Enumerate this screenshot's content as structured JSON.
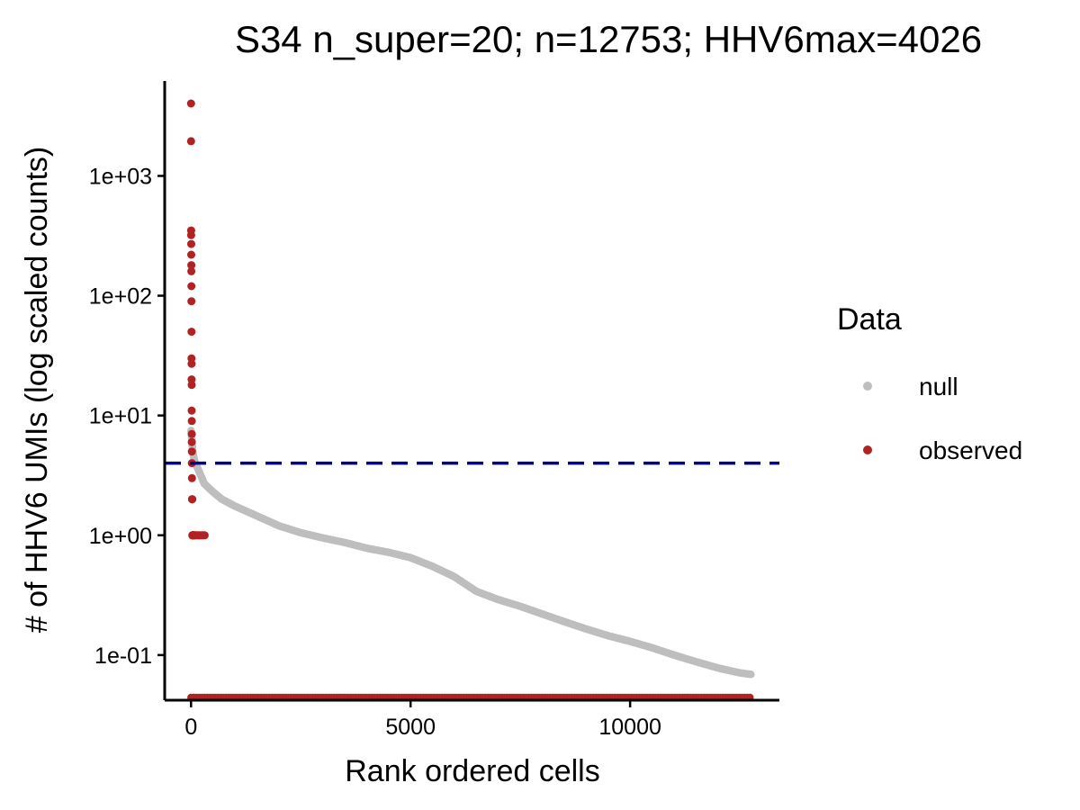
{
  "chart_data": {
    "type": "scatter",
    "title": "S34 n_super=20; n=12753; HHV6max=4026",
    "xlabel": "Rank ordered cells",
    "ylabel": "# of HHV6 UMIs (log scaled counts)",
    "xlim": [
      -600,
      13400
    ],
    "ylim": [
      0.042,
      6200
    ],
    "y_scale": "log10",
    "x_ticks": [
      0,
      5000,
      10000
    ],
    "x_tick_labels": [
      "0",
      "5000",
      "10000"
    ],
    "y_ticks": [
      0.1,
      1,
      10,
      100,
      1000
    ],
    "y_tick_labels": [
      "1e-01",
      "1e+00",
      "1e+01",
      "1e+02",
      "1e+03"
    ],
    "grid": false,
    "legend": {
      "title": "Data",
      "position": "right",
      "entries": [
        "null",
        "observed"
      ]
    },
    "colors": {
      "null": "#bebebe",
      "observed": "#b22222",
      "threshold": "#00008b"
    },
    "threshold": {
      "y": 4,
      "style": "dashed"
    },
    "series": [
      {
        "name": "null",
        "x": [
          0,
          20,
          40,
          60,
          80,
          100,
          200,
          300,
          500,
          700,
          1000,
          1500,
          2000,
          2500,
          3000,
          3500,
          4000,
          4500,
          5000,
          5500,
          6000,
          6500,
          7000,
          7500,
          8000,
          8500,
          9000,
          9500,
          10000,
          10500,
          11000,
          11500,
          12000,
          12500,
          12753
        ],
        "values": [
          7.5,
          6.0,
          5.0,
          4.5,
          4.2,
          4.0,
          3.3,
          2.7,
          2.3,
          2.0,
          1.75,
          1.45,
          1.2,
          1.05,
          0.95,
          0.87,
          0.78,
          0.72,
          0.65,
          0.55,
          0.45,
          0.34,
          0.29,
          0.255,
          0.22,
          0.19,
          0.165,
          0.145,
          0.13,
          0.115,
          0.1,
          0.088,
          0.078,
          0.071,
          0.069
        ]
      },
      {
        "name": "observed",
        "x": [
          0,
          1,
          2,
          3,
          4,
          5,
          6,
          7,
          8,
          9,
          10,
          11,
          12,
          13,
          14,
          15,
          16,
          17,
          18,
          19,
          20,
          22,
          24,
          26,
          28,
          30,
          32,
          34,
          36,
          38,
          40,
          45,
          50,
          60,
          70,
          80,
          90,
          100,
          130,
          160,
          190,
          220,
          250,
          280,
          310
        ],
        "values": [
          4026,
          1950,
          350,
          320,
          270,
          220,
          180,
          160,
          120,
          90,
          50,
          30,
          27,
          20,
          18,
          11,
          9,
          7,
          6,
          5,
          4,
          3,
          2,
          2,
          2,
          1,
          1,
          1,
          1,
          1,
          1,
          1,
          1,
          1,
          1,
          1,
          1,
          1,
          1,
          1,
          1,
          1,
          1,
          1,
          1
        ]
      },
      {
        "name": "observed",
        "x_range": [
          0,
          12753
        ],
        "values": [
          0
        ]
      }
    ]
  }
}
